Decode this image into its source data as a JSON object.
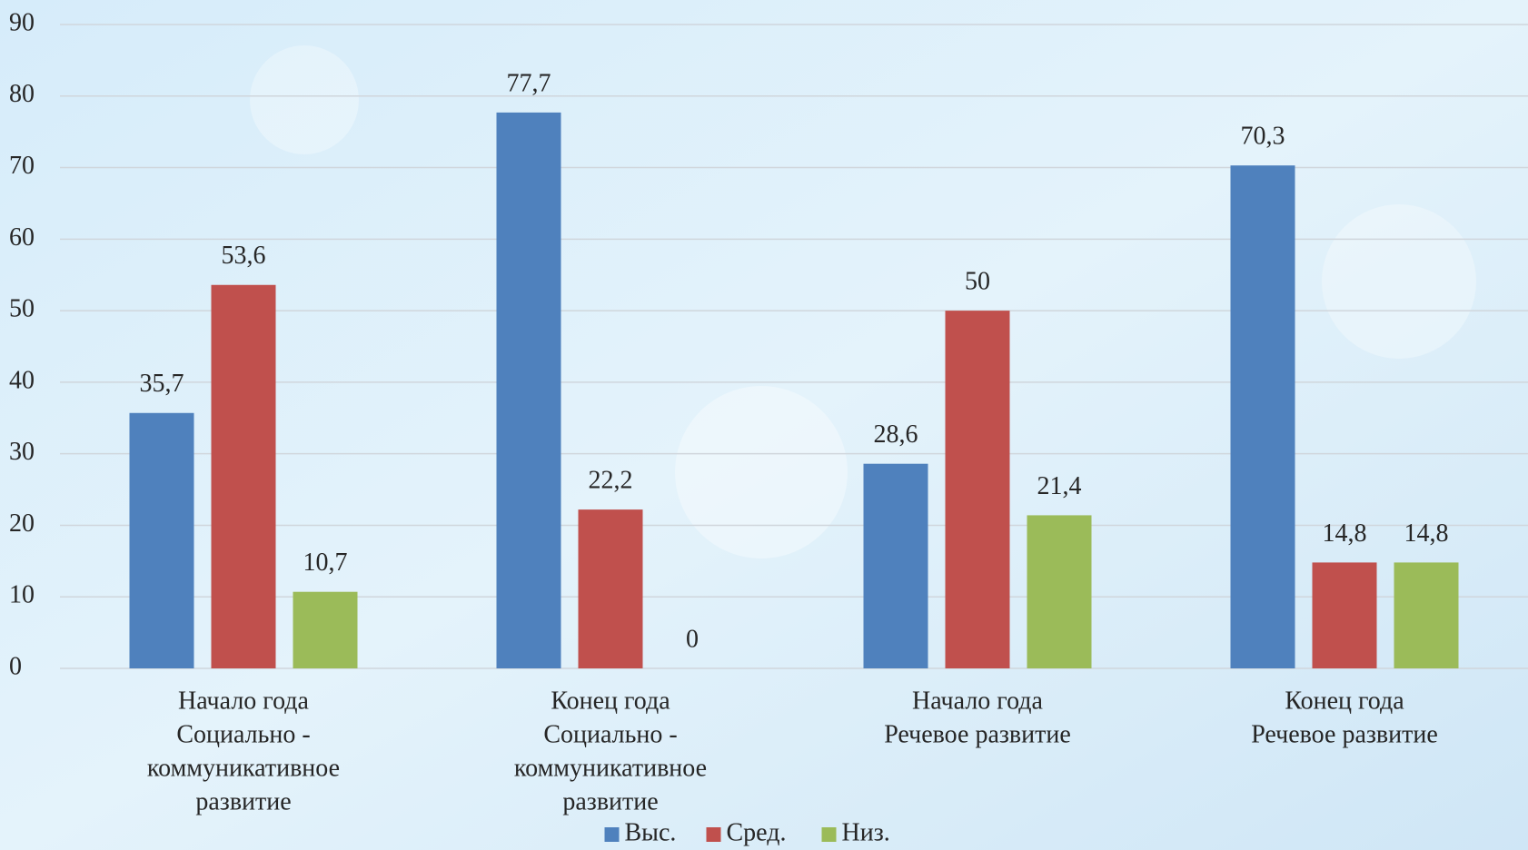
{
  "chart_data": {
    "type": "bar",
    "categories": [
      [
        "Начало года",
        "Социально -",
        "коммуникативное",
        "развитие"
      ],
      [
        "Конец года",
        "Социально -",
        "коммуникативное",
        "развитие"
      ],
      [
        "Начало года",
        "Речевое развитие"
      ],
      [
        "Конец года",
        "Речевое развитие"
      ]
    ],
    "series": [
      {
        "name": "Выс.",
        "color": "#4f81bd",
        "values": [
          35.7,
          77.7,
          28.6,
          70.3
        ],
        "value_labels": [
          "35,7",
          "77,7",
          "28,6",
          "70,3"
        ]
      },
      {
        "name": "Сред.",
        "color": "#c0504d",
        "values": [
          53.6,
          22.2,
          50,
          14.8
        ],
        "value_labels": [
          "53,6",
          "22,2",
          "50",
          "14,8"
        ]
      },
      {
        "name": "Низ.",
        "color": "#9bbb59",
        "values": [
          10.7,
          0,
          21.4,
          14.8
        ],
        "value_labels": [
          "10,7",
          "0",
          "21,4",
          "14,8"
        ]
      }
    ],
    "ylim": [
      0,
      90
    ],
    "yticks": [
      0,
      10,
      20,
      30,
      40,
      50,
      60,
      70,
      80,
      90
    ],
    "grid": true,
    "legend": "bottom"
  }
}
